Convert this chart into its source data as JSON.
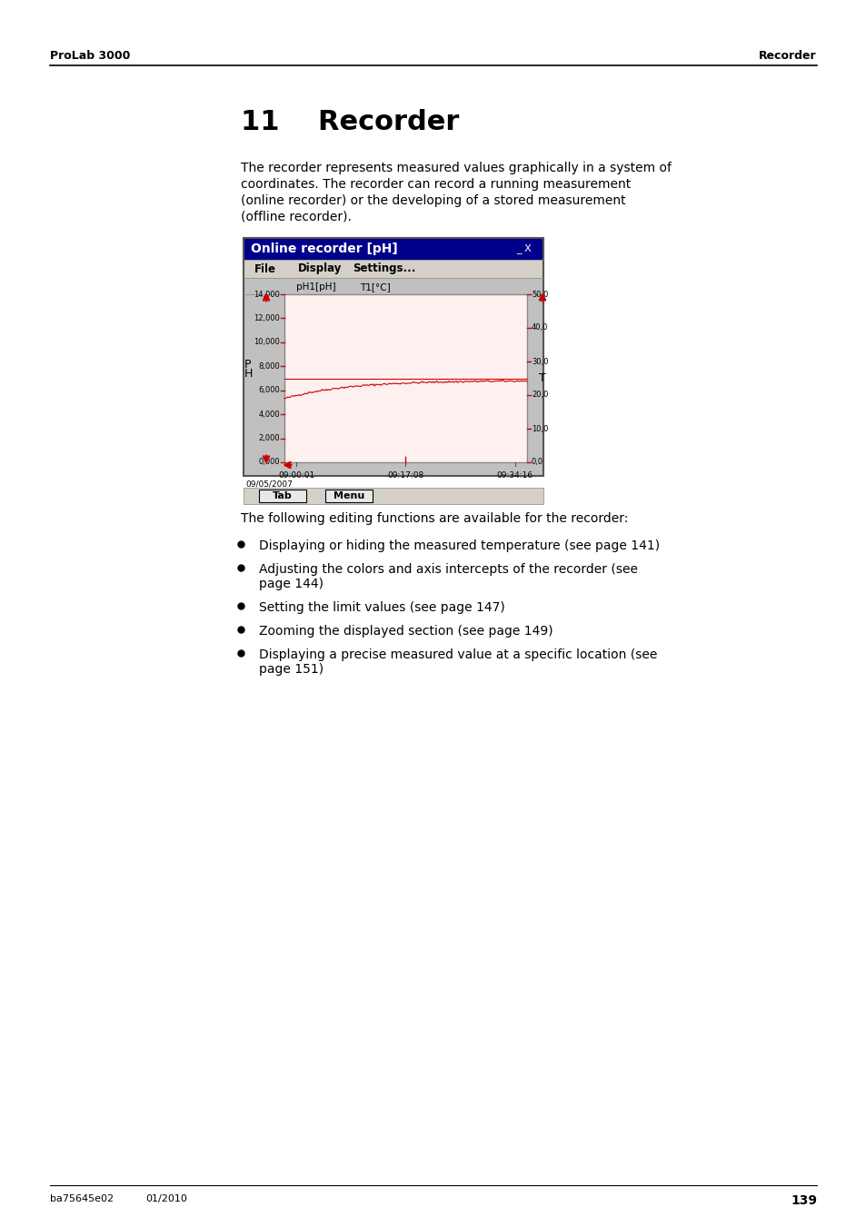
{
  "page_header_left": "ProLab 3000",
  "page_header_right": "Recorder",
  "chapter_number": "11",
  "chapter_title": "Recorder",
  "body_text": "The recorder represents measured values graphically in a system of\ncoordinates. The recorder can record a running measurement\n(online recorder) or the developing of a stored measurement\n(offline recorder).",
  "screenshot_title": "Online recorder [pH]",
  "menu_items": [
    "File",
    "Display",
    "Settings..."
  ],
  "legend_items": [
    "pH1[pH]",
    "T1[°C]"
  ],
  "y_left_label": "p\nH",
  "y_left_ticks": [
    "14,000",
    "12,000",
    "10,000",
    "8,000",
    "6,000",
    "4,000",
    "2,000",
    "0,000"
  ],
  "y_right_ticks": [
    "50,0",
    "40,0",
    "30,0",
    "20,0",
    "10,0",
    "0,0"
  ],
  "x_ticks": [
    "09:00:01",
    "09:17:08",
    "09:34:16"
  ],
  "date_label": "09/05/2007",
  "bottom_buttons": [
    "Tab",
    "Menu"
  ],
  "bullet_points": [
    "Displaying or hiding the measured temperature (see page 141)",
    "Adjusting the colors and axis intercepts of the recorder (see\npage 144)",
    "Setting the limit values (see page 147)",
    "Zooming the displayed section (see page 149)",
    "Displaying a precise measured value at a specific location (see\npage 151)"
  ],
  "footer_left": "ba75645e02",
  "footer_date": "01/2010",
  "footer_page": "139",
  "following_text": "The following editing functions are available for the recorder:",
  "background_color": "#ffffff",
  "header_line_color": "#000000",
  "footer_line_color": "#000000",
  "screenshot_title_bg": "#00008B",
  "screenshot_title_color": "#ffffff",
  "screenshot_bg": "#C8C8C8",
  "plot_bg": "#FFF0F0",
  "plot_line_color": "#CC0000",
  "limit_line_color": "#CC0000",
  "tick_color": "#CC0000",
  "arrow_color": "#CC0000"
}
